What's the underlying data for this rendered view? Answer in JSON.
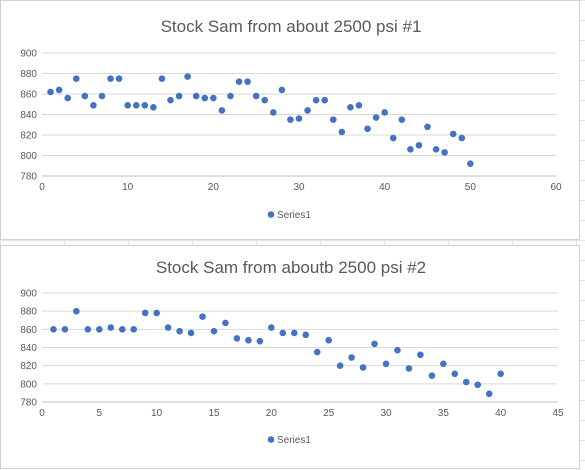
{
  "colors": {
    "marker": "#4472c4",
    "grid": "#d9d9d9",
    "text": "#595959"
  },
  "chart_data": [
    {
      "type": "scatter",
      "title": "Stock Sam from about 2500 psi #1",
      "xlabel": "",
      "ylabel": "",
      "xlim": [
        0,
        60
      ],
      "ylim": [
        780,
        900
      ],
      "xticks": [
        0,
        10,
        20,
        30,
        40,
        50,
        60
      ],
      "yticks": [
        780,
        800,
        820,
        840,
        860,
        880,
        900
      ],
      "grid": true,
      "legend": "bottom",
      "series": [
        {
          "name": "Series1",
          "x": [
            1,
            2,
            3,
            4,
            5,
            6,
            7,
            8,
            9,
            10,
            11,
            12,
            13,
            14,
            15,
            16,
            17,
            18,
            19,
            20,
            21,
            22,
            23,
            24,
            25,
            26,
            27,
            28,
            29,
            30,
            31,
            32,
            33,
            34,
            35,
            36,
            37,
            38,
            39,
            40,
            41,
            42,
            43,
            44,
            45,
            46,
            47,
            48,
            49,
            50
          ],
          "y": [
            862,
            864,
            856,
            875,
            858,
            849,
            858,
            875,
            875,
            849,
            849,
            849,
            847,
            875,
            854,
            858,
            877,
            858,
            856,
            856,
            844,
            858,
            872,
            872,
            858,
            854,
            842,
            864,
            835,
            836,
            844,
            854,
            854,
            835,
            823,
            847,
            849,
            826,
            837,
            842,
            817,
            835,
            806,
            810,
            828,
            806,
            803,
            821,
            817,
            792
          ]
        }
      ]
    },
    {
      "type": "scatter",
      "title": "Stock Sam from aboutb 2500 psi #2",
      "xlabel": "",
      "ylabel": "",
      "xlim": [
        0,
        45
      ],
      "ylim": [
        780,
        900
      ],
      "xticks": [
        0,
        5,
        10,
        15,
        20,
        25,
        30,
        35,
        40,
        45
      ],
      "yticks": [
        780,
        800,
        820,
        840,
        860,
        880,
        900
      ],
      "grid": true,
      "legend": "bottom",
      "series": [
        {
          "name": "Series1",
          "x": [
            1,
            2,
            3,
            4,
            5,
            6,
            7,
            8,
            9,
            10,
            11,
            12,
            13,
            14,
            15,
            16,
            17,
            18,
            19,
            20,
            21,
            22,
            23,
            24,
            25,
            26,
            27,
            28,
            29,
            30,
            31,
            32,
            33,
            34,
            35,
            36,
            37,
            38,
            39,
            40
          ],
          "y": [
            860,
            860,
            880,
            860,
            860,
            862,
            860,
            860,
            878,
            878,
            862,
            858,
            856,
            874,
            858,
            867,
            850,
            848,
            847,
            862,
            856,
            856,
            854,
            835,
            848,
            820,
            829,
            818,
            844,
            822,
            837,
            817,
            832,
            809,
            822,
            811,
            802,
            799,
            789,
            811
          ]
        }
      ]
    }
  ]
}
